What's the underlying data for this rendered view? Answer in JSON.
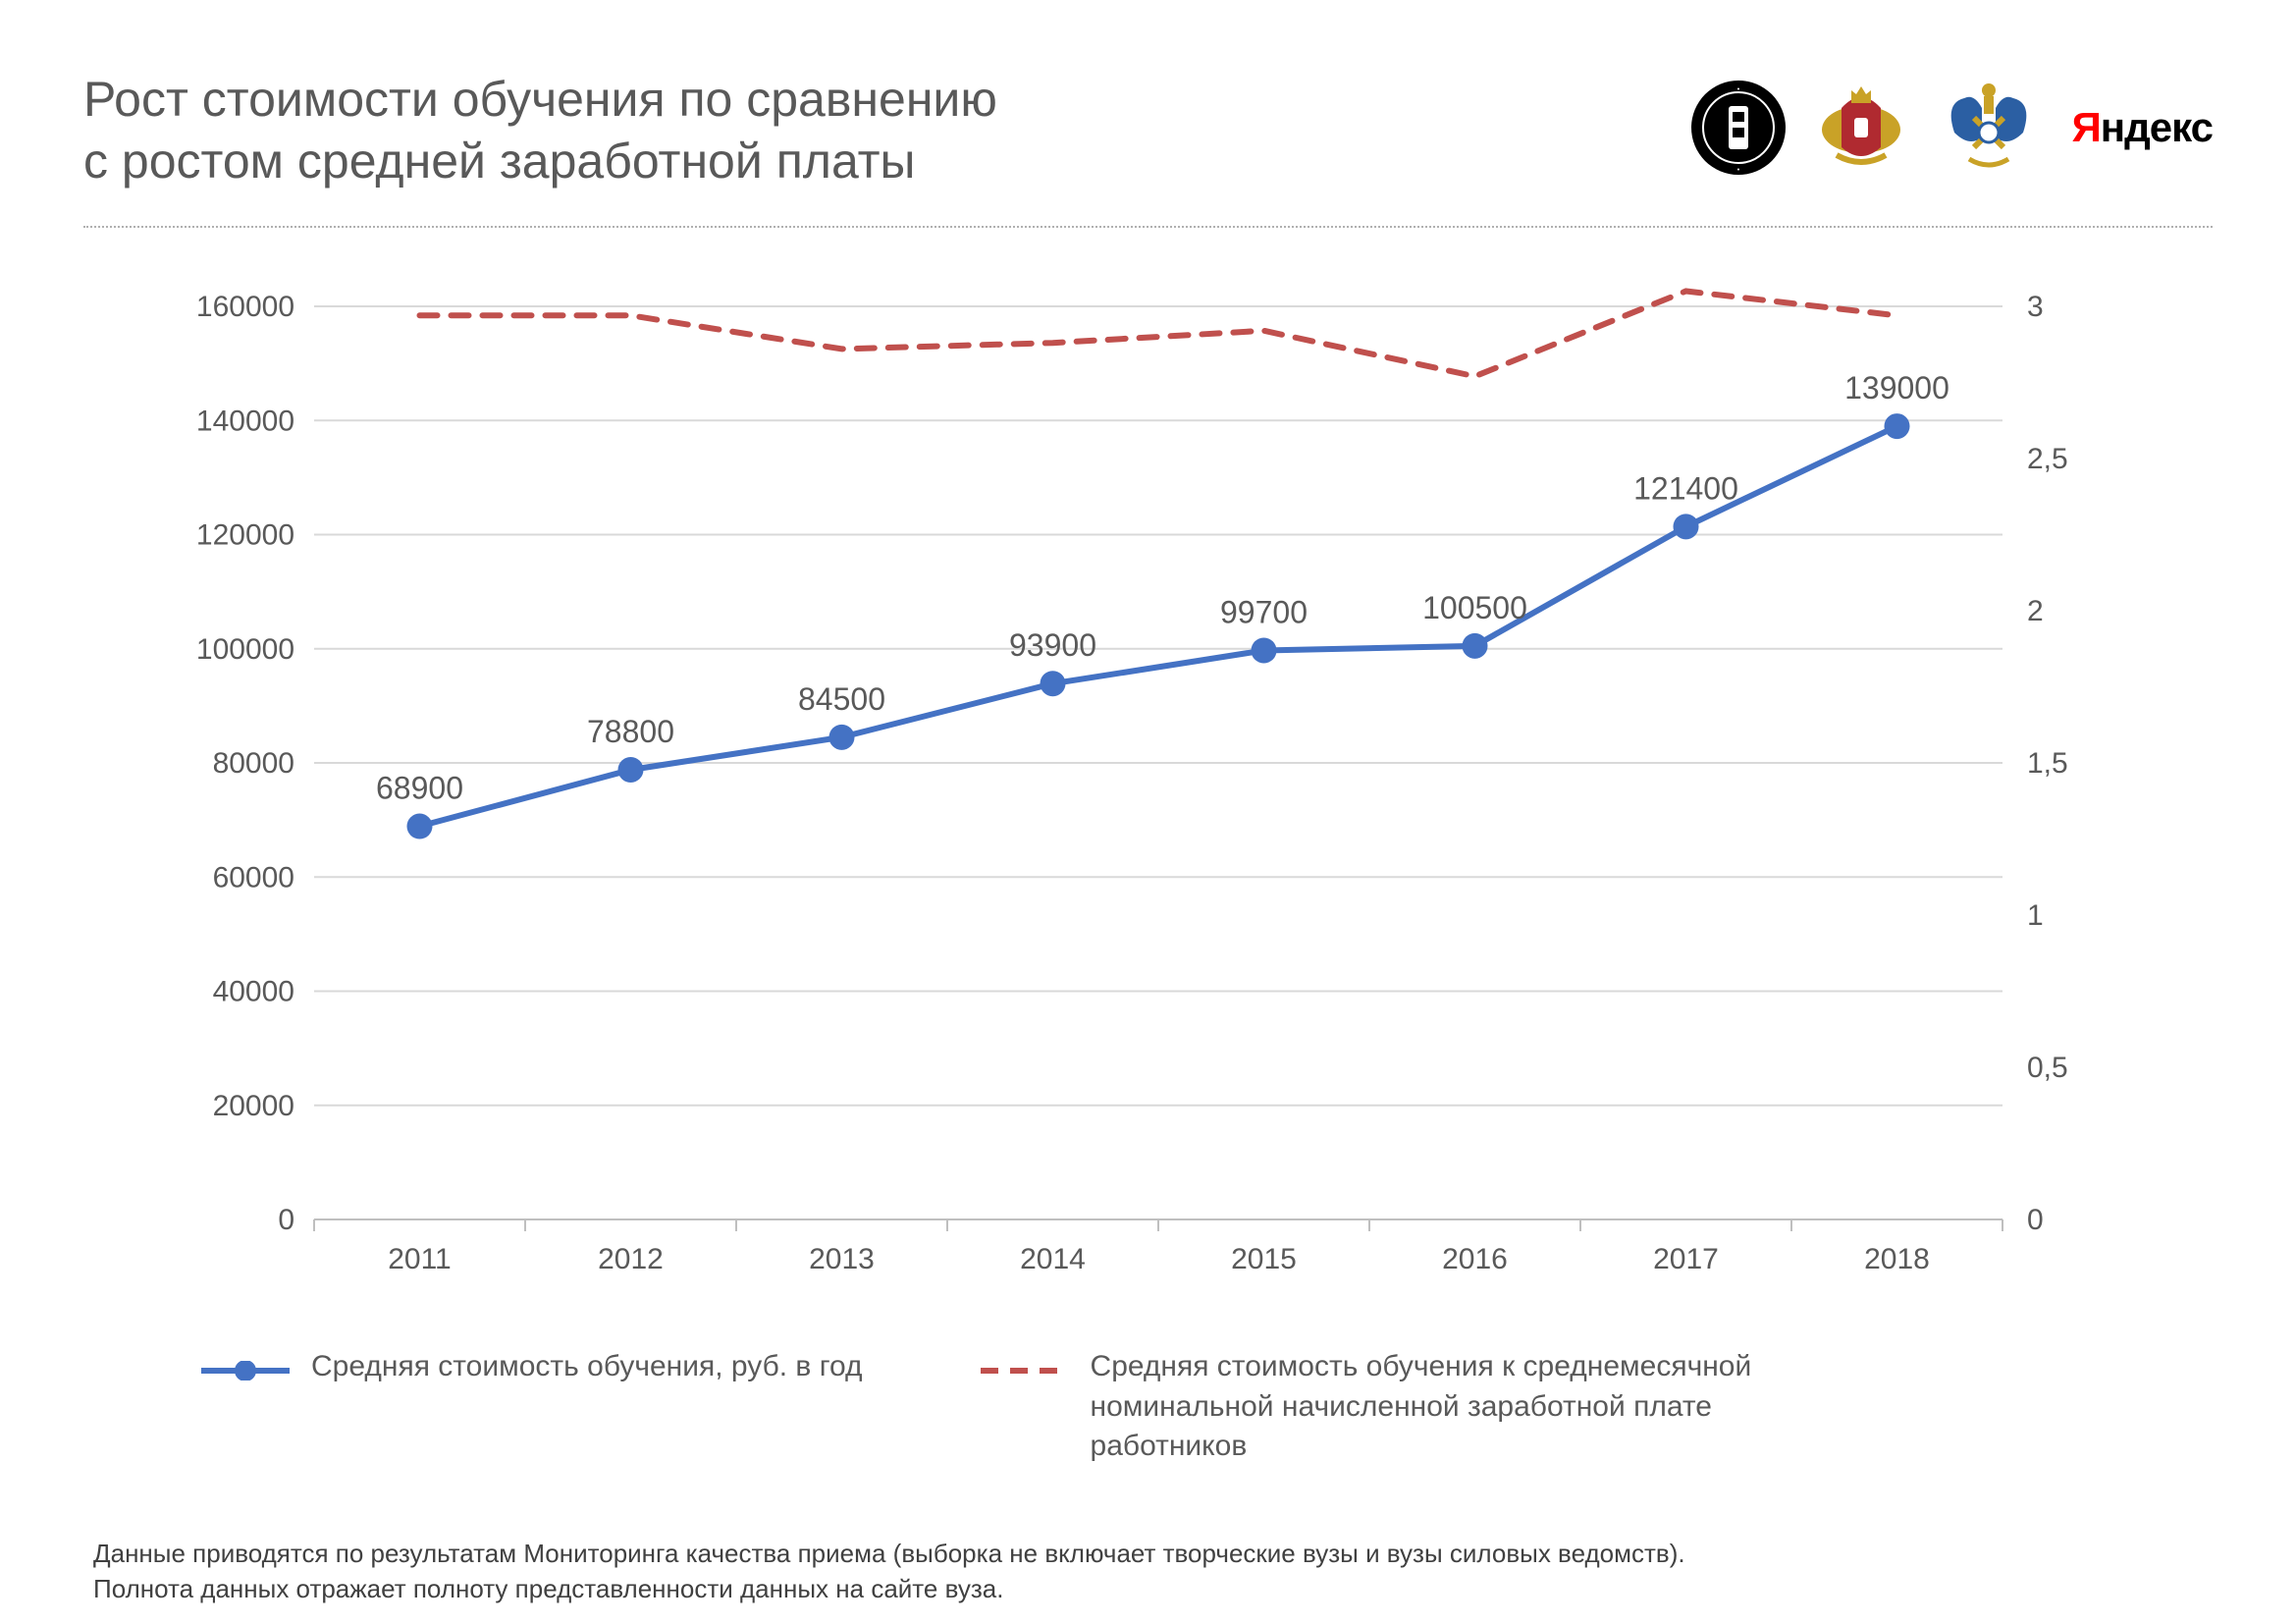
{
  "title_line1": "Рост стоимости обучения по сравнению",
  "title_line2": "с ростом средней заработной платы",
  "brand_text": "Яндекс",
  "chart": {
    "type": "line-dual-axis",
    "categories": [
      "2011",
      "2012",
      "2013",
      "2014",
      "2015",
      "2016",
      "2017",
      "2018"
    ],
    "series1": {
      "name": "Средняя стоимость обучения, руб. в год",
      "values": [
        68900,
        78800,
        84500,
        93900,
        99700,
        100500,
        121400,
        139000
      ],
      "color": "#4472c4",
      "line_width": 6,
      "marker_radius": 13,
      "data_labels": [
        "68900",
        "78800",
        "84500",
        "93900",
        "99700",
        "100500",
        "121400",
        "139000"
      ]
    },
    "series2": {
      "name": "Средняя стоимость обучения к среднемесячной номинальной начисленной заработной плате работников",
      "values": [
        2.97,
        2.97,
        2.86,
        2.88,
        2.92,
        2.77,
        3.05,
        2.97
      ],
      "color": "#c0504d",
      "line_width": 6,
      "dash": "18,14"
    },
    "y_left": {
      "min": 0,
      "max": 160000,
      "step": 20000
    },
    "y_right": {
      "min": 0,
      "max": 3,
      "step": 0.5,
      "labels": [
        "0",
        "0,5",
        "1",
        "1,5",
        "2",
        "2,5",
        "3"
      ]
    },
    "axis_color": "#d9d9d9",
    "grid_color": "#d9d9d9",
    "tick_font_size": 30,
    "tick_color": "#595959",
    "data_label_font_size": 32,
    "data_label_color": "#595959",
    "background": "#ffffff"
  },
  "legend": {
    "font_size": 30,
    "item1": "Средняя стоимость обучения, руб. в год",
    "item2": "Средняя стоимость обучения к среднемесячной номинальной начисленной заработной плате работников"
  },
  "footnote_line1": "Данные приводятся по результатам Мониторинга качества приема (выборка не включает творческие вузы и вузы силовых ведомств).",
  "footnote_line2": "Полнота данных отражает полноту представленности данных на сайте вуза.",
  "logos": {
    "hse_bg": "#000000",
    "gov1_accent": "#c9a227",
    "gov1_red": "#b02a30",
    "gov2_blue": "#2b5fa3",
    "gov2_gold": "#c9a227",
    "yandex_red": "#ff0000",
    "yandex_black": "#000000"
  }
}
